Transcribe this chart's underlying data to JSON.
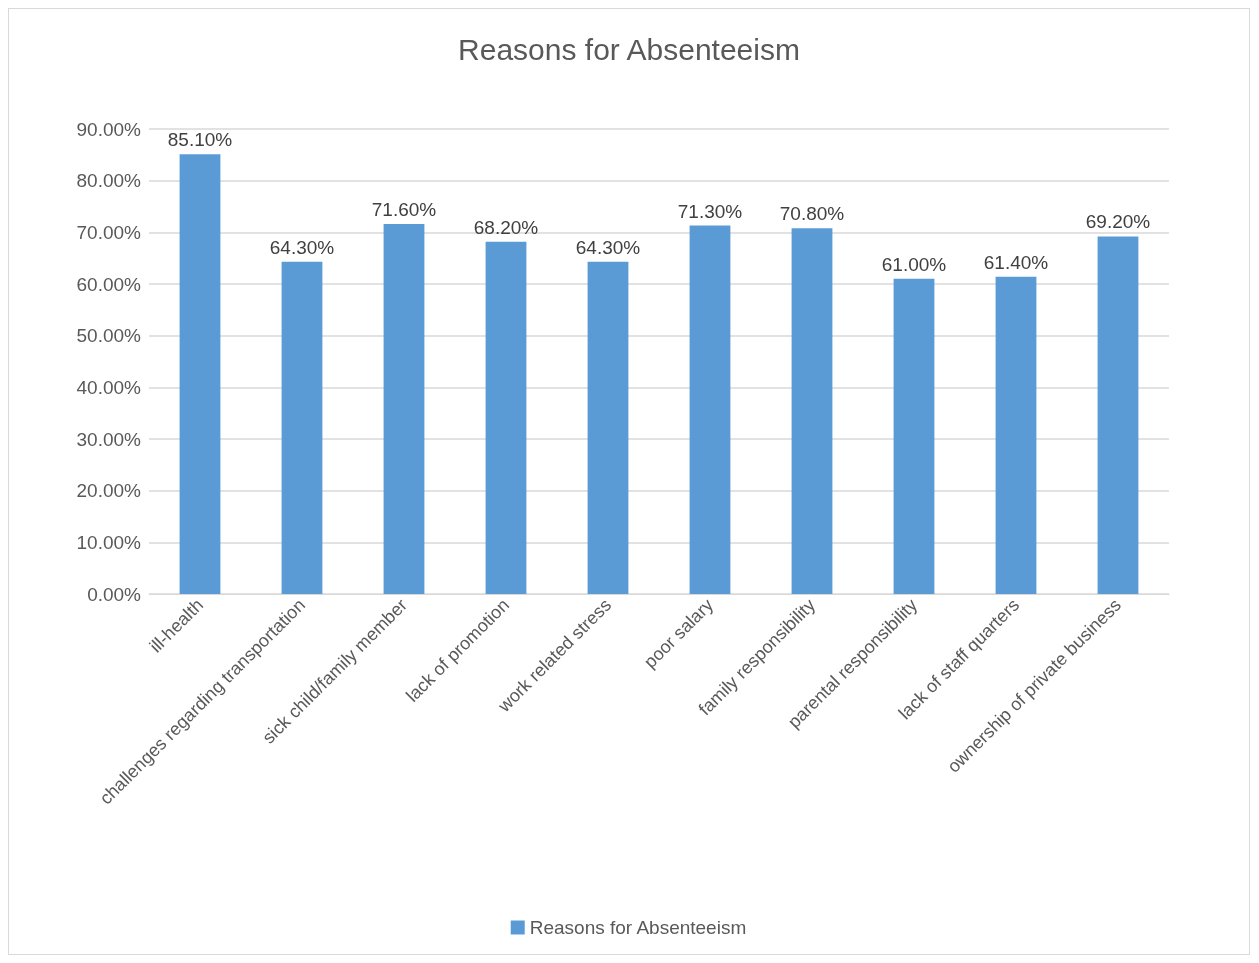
{
  "chart_data": {
    "type": "bar",
    "title": "Reasons for Absenteeism",
    "categories": [
      "ill-health",
      "challenges regarding transportation",
      "sick child/family member",
      "lack of promotion",
      "work related stress",
      "poor salary",
      "family responsibility",
      "parental responsibility",
      "lack of staff quarters",
      "ownership of private business"
    ],
    "series": [
      {
        "name": "Reasons for Absenteeism",
        "color": "#5b9bd5",
        "values": [
          85.1,
          64.3,
          71.6,
          68.2,
          64.3,
          71.3,
          70.8,
          61.0,
          61.4,
          69.2
        ],
        "value_labels": [
          "85.10%",
          "64.30%",
          "71.60%",
          "68.20%",
          "64.30%",
          "71.30%",
          "70.80%",
          "61.00%",
          "61.40%",
          "69.20%"
        ]
      }
    ],
    "ylim": [
      0,
      90
    ],
    "yticks": [
      {
        "value": 0,
        "label": "0.00%"
      },
      {
        "value": 10,
        "label": "10.00%"
      },
      {
        "value": 20,
        "label": "20.00%"
      },
      {
        "value": 30,
        "label": "30.00%"
      },
      {
        "value": 40,
        "label": "40.00%"
      },
      {
        "value": 50,
        "label": "50.00%"
      },
      {
        "value": 60,
        "label": "60.00%"
      },
      {
        "value": 70,
        "label": "70.00%"
      },
      {
        "value": 80,
        "label": "80.00%"
      },
      {
        "value": 90,
        "label": "90.00%"
      }
    ],
    "grid": "y",
    "legend": "bottom"
  }
}
